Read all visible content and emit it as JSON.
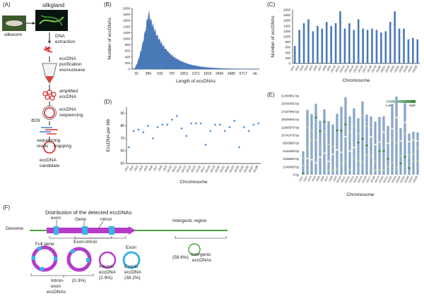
{
  "panels": {
    "A": {
      "letter": "(A)",
      "silkworm": "silkworm",
      "silkgland": "silkgland",
      "steps": [
        "DNA",
        "extraction",
        "eccDNA",
        "purification",
        "exonuclease",
        "amplified",
        "eccDNA",
        "eccDNA",
        "sequencing",
        "sequencing",
        "reads",
        "mapping",
        "eccDNA",
        "candidate"
      ],
      "phi": "Φ29"
    },
    "B": {
      "letter": "(B)"
    },
    "C": {
      "letter": "(C)"
    },
    "D": {
      "letter": "(D)"
    },
    "E": {
      "letter": "(E)",
      "legend_low": "Low",
      "legend_high": "High"
    },
    "F": {
      "letter": "(F)",
      "title": "Distribution of the detected eccDNAs",
      "genome": "Genome",
      "exon": "exon",
      "gene": "Gene",
      "intron": "intron",
      "intergenic_region": "Intergenic region",
      "full_gene": "Full gene",
      "exon_intron": "Exon-Intron",
      "exon_label": "Exon",
      "intron_exon_1": "Intron-",
      "intron_exon_2": "exon",
      "intron_exon_3": "eccDNAs",
      "pct_intron_exon": "(0.3%)",
      "intronic_1": "Intronic",
      "intronic_2": "eccDNA",
      "pct_intronic": "(2.9%)",
      "exonic_1": "Exonic",
      "exonic_2": "eccDNA",
      "pct_exonic": "(38.2%)",
      "pct_intergenic": "(58.6%)",
      "intergenic_1": "Intergenic",
      "intergenic_2": "eccDNAs"
    }
  },
  "chart_data": [
    {
      "id": "B",
      "type": "area",
      "xlabel": "Length of eccDNAs",
      "ylabel": "Number of eccDNAs",
      "x_ticks": [
        "32",
        "284",
        "532",
        "787",
        "1053",
        "1371",
        "1810",
        "2400",
        "3480",
        "5717",
        "kb"
      ],
      "y_ticks": [
        0,
        200,
        400,
        600,
        800,
        1000,
        1200,
        1400,
        1600,
        1800,
        2000
      ],
      "ylim": [
        0,
        2000
      ],
      "color": "#4a79b8"
    },
    {
      "id": "C",
      "type": "bar",
      "xlabel": "Chromosome",
      "ylabel": "Number of eccDNAs",
      "categories": [
        "chr1",
        "chr2",
        "chr3",
        "chr4",
        "chr5",
        "chr6",
        "chr7",
        "chr8",
        "chr9",
        "chr10",
        "chr11",
        "chr12",
        "chr13",
        "chr14",
        "chr15",
        "chr16",
        "chr17",
        "chr18",
        "chr19",
        "chr20",
        "chr21",
        "chr22",
        "chr23",
        "chr24",
        "chr25",
        "chr26",
        "chr27",
        "chr28"
      ],
      "values": [
        650,
        1250,
        1500,
        1650,
        1200,
        1400,
        1300,
        1550,
        1400,
        1500,
        1950,
        1300,
        1500,
        1250,
        1650,
        1300,
        1250,
        1300,
        1250,
        1150,
        1200,
        1550,
        1950,
        1300,
        1300,
        900,
        950,
        900
      ],
      "y_ticks": [
        0,
        200,
        400,
        600,
        800,
        1000,
        1200,
        1400,
        1600,
        1800,
        2000
      ],
      "ylim": [
        0,
        2000
      ],
      "color": "#4a79b8"
    },
    {
      "id": "D",
      "type": "scatter",
      "xlabel": "Chromosome",
      "ylabel": "EccDNA per Mb",
      "categories": [
        "chr1",
        "chr2",
        "chr3",
        "chr4",
        "chr5",
        "chr6",
        "chr7",
        "chr8",
        "chr9",
        "chr10",
        "chr11",
        "chr12",
        "chr13",
        "chr14",
        "chr15",
        "chr16",
        "chr17",
        "chr18",
        "chr19",
        "chr20",
        "chr21",
        "chr22",
        "chr23",
        "chr24",
        "chr25",
        "chr26",
        "chr27",
        "chr28"
      ],
      "values": [
        63,
        76,
        77,
        75,
        80,
        70,
        79,
        81,
        81,
        85,
        88,
        78,
        72,
        82,
        82,
        82,
        65,
        76,
        81,
        81,
        76,
        79,
        84,
        63,
        79,
        76,
        81,
        82
      ],
      "y_ticks": [
        50,
        60,
        70,
        80,
        90
      ],
      "ylim": [
        50,
        95
      ],
      "color": "#4a8ed8"
    },
    {
      "id": "E",
      "type": "heatmap",
      "xlabel": "Chromosome",
      "categories": [
        "chr1",
        "chr2",
        "chr3",
        "chr4",
        "chr5",
        "chr6",
        "chr7",
        "chr8",
        "chr9",
        "chr10",
        "chr11",
        "chr12",
        "chr13",
        "chr14",
        "chr15",
        "chr16",
        "chr17",
        "chr18",
        "chr19",
        "chr20",
        "chr21",
        "chr22",
        "chr23",
        "chr24",
        "chr25",
        "chr26",
        "chr27",
        "chr28"
      ],
      "lengths_bp": [
        6400000,
        17700000,
        16500000,
        19300000,
        14700000,
        17800000,
        14600000,
        13700000,
        16600000,
        18500000,
        21100000,
        15900000,
        18100000,
        15400000,
        20000000,
        16400000,
        15900000,
        14500000,
        15700000,
        15900000,
        13300000,
        19300000,
        21300000,
        12700000,
        19500000,
        11200000,
        11700000,
        11500000
      ],
      "y_ticks": [
        "0 bp",
        "2148495 bp",
        "4296990 bp",
        "6445485 bp",
        "8593980 bp",
        "10742475 bp",
        "12890970 bp",
        "15039465 bp",
        "17187960 bp",
        "19336455 bp",
        "21484951 bp"
      ],
      "ylim": [
        0,
        21484951
      ],
      "colors": {
        "low": "#8aa8c8",
        "high": "#2c8a2c"
      }
    }
  ]
}
